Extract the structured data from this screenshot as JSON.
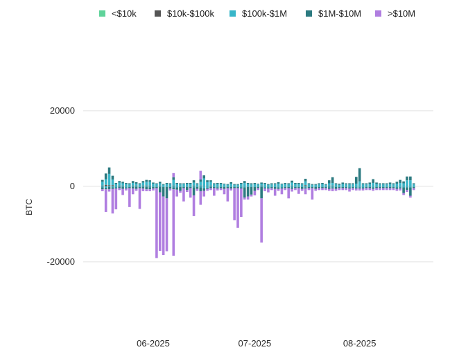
{
  "chart_data": {
    "type": "bar",
    "stacked": true,
    "ylabel": "BTC",
    "ylim": [
      -36000,
      31000
    ],
    "yticks": [
      20000,
      0,
      -20000
    ],
    "ytick_labels": [
      "20000",
      "0",
      "-20000"
    ],
    "xtick_labels": [
      {
        "label": "06-2025",
        "index": 15
      },
      {
        "label": "07-2025",
        "index": 45
      },
      {
        "label": "08-2025",
        "index": 76
      }
    ],
    "grid": "horizontal",
    "legend_position": "top",
    "colors": {
      "lt10k": "#5fd39a",
      "10k_100k": "#555555",
      "100k_1m": "#38b6c9",
      "1m_10m": "#2c7a80",
      "gt10m": "#b07ee0"
    },
    "series": [
      {
        "name": "<$10k",
        "key": "lt10k",
        "pos": [
          0,
          0,
          0,
          0,
          0,
          0,
          0,
          0,
          0,
          0,
          0,
          0,
          0,
          0,
          0,
          0,
          0,
          0,
          0,
          0,
          0,
          0,
          0,
          0,
          0,
          0,
          0,
          0,
          0,
          0,
          0,
          0,
          0,
          0,
          0,
          0,
          0,
          0,
          0,
          0,
          0,
          0,
          0,
          0,
          0,
          0,
          0,
          0,
          0,
          0,
          0,
          0,
          0,
          0,
          0,
          0,
          0,
          0,
          0,
          0,
          0,
          0,
          0,
          0,
          0,
          0,
          0,
          0,
          0,
          0,
          0,
          0,
          0,
          0,
          0,
          0,
          0,
          0,
          0,
          0,
          0,
          0,
          0,
          0,
          0,
          0,
          0,
          0,
          0,
          0,
          0,
          0,
          0
        ],
        "neg": [
          0,
          0,
          0,
          0,
          0,
          0,
          0,
          0,
          0,
          0,
          0,
          0,
          0,
          0,
          0,
          0,
          0,
          0,
          0,
          0,
          0,
          0,
          0,
          0,
          0,
          0,
          0,
          0,
          0,
          0,
          0,
          0,
          0,
          0,
          0,
          0,
          0,
          0,
          0,
          0,
          0,
          0,
          0,
          0,
          0,
          0,
          0,
          0,
          0,
          0,
          0,
          0,
          0,
          0,
          0,
          0,
          0,
          0,
          0,
          0,
          0,
          0,
          0,
          0,
          0,
          0,
          0,
          0,
          0,
          0,
          0,
          0,
          0,
          0,
          0,
          0,
          0,
          0,
          0,
          0,
          0,
          0,
          0,
          0,
          0,
          0,
          0,
          0,
          0,
          0,
          0,
          0,
          0
        ]
      },
      {
        "name": "$10k-$100k",
        "key": "10k_100k",
        "pos": [
          200,
          400,
          300,
          300,
          100,
          200,
          200,
          100,
          100,
          200,
          200,
          100,
          200,
          200,
          200,
          100,
          100,
          200,
          100,
          100,
          100,
          200,
          100,
          100,
          100,
          100,
          100,
          200,
          100,
          200,
          100,
          100,
          200,
          100,
          100,
          100,
          100,
          100,
          100,
          100,
          100,
          100,
          100,
          100,
          100,
          100,
          100,
          200,
          100,
          100,
          100,
          100,
          100,
          100,
          100,
          100,
          200,
          100,
          100,
          100,
          300,
          100,
          100,
          100,
          100,
          100,
          100,
          200,
          200,
          100,
          100,
          100,
          100,
          100,
          100,
          100,
          100,
          100,
          100,
          100,
          100,
          100,
          100,
          100,
          100,
          100,
          100,
          100,
          100,
          100,
          100,
          100,
          100
        ],
        "neg": [
          0,
          0,
          0,
          0,
          0,
          0,
          0,
          0,
          0,
          0,
          0,
          0,
          0,
          0,
          0,
          0,
          0,
          0,
          0,
          0,
          0,
          0,
          0,
          0,
          0,
          0,
          0,
          0,
          0,
          0,
          0,
          0,
          0,
          0,
          0,
          0,
          0,
          0,
          0,
          0,
          0,
          0,
          0,
          0,
          0,
          0,
          0,
          0,
          0,
          0,
          0,
          0,
          0,
          0,
          0,
          0,
          0,
          0,
          0,
          0,
          0,
          0,
          0,
          0,
          0,
          0,
          0,
          0,
          0,
          0,
          0,
          0,
          0,
          0,
          0,
          0,
          0,
          0,
          0,
          0,
          0,
          0,
          0,
          0,
          0,
          0,
          0,
          0,
          0,
          0,
          0,
          0,
          0
        ]
      },
      {
        "name": "$100k-$1M",
        "key": "100k_1m",
        "pos": [
          1000,
          1500,
          3000,
          1500,
          500,
          800,
          600,
          500,
          400,
          700,
          500,
          400,
          800,
          1000,
          1000,
          600,
          500,
          600,
          300,
          500,
          400,
          1500,
          500,
          400,
          500,
          500,
          500,
          800,
          400,
          1000,
          2000,
          1000,
          1000,
          400,
          500,
          500,
          400,
          300,
          600,
          300,
          300,
          500,
          800,
          500,
          400,
          500,
          400,
          500,
          500,
          300,
          400,
          400,
          600,
          400,
          500,
          400,
          800,
          500,
          500,
          400,
          1000,
          400,
          300,
          300,
          400,
          500,
          300,
          600,
          700,
          400,
          300,
          500,
          400,
          400,
          400,
          600,
          1200,
          400,
          400,
          500,
          800,
          500,
          400,
          400,
          400,
          500,
          400,
          600,
          800,
          700,
          1500,
          1500,
          400
        ],
        "neg": [
          300,
          400,
          200,
          300,
          300,
          200,
          200,
          300,
          200,
          200,
          200,
          200,
          200,
          200,
          300,
          200,
          200,
          200,
          200,
          200,
          200,
          300,
          300,
          200,
          200,
          200,
          200,
          300,
          200,
          300,
          500,
          400,
          200,
          200,
          300,
          200,
          200,
          200,
          200,
          200,
          200,
          300,
          300,
          200,
          200,
          200,
          200,
          200,
          300,
          300,
          200,
          200,
          300,
          300,
          200,
          200,
          300,
          200,
          200,
          200,
          300,
          200,
          200,
          200,
          200,
          200,
          200,
          300,
          300,
          200,
          200,
          200,
          200,
          300,
          200,
          300,
          300,
          300,
          200,
          200,
          300,
          200,
          200,
          200,
          200,
          200,
          200,
          300,
          300,
          300,
          300,
          300,
          200
        ]
      },
      {
        "name": "$1M-$10M",
        "key": "1m_10m",
        "pos": [
          500,
          1500,
          1700,
          1000,
          300,
          400,
          400,
          300,
          300,
          500,
          400,
          300,
          400,
          500,
          400,
          300,
          200,
          400,
          200,
          300,
          300,
          700,
          300,
          300,
          200,
          300,
          300,
          600,
          300,
          600,
          800,
          500,
          400,
          300,
          300,
          300,
          200,
          200,
          400,
          200,
          200,
          300,
          500,
          300,
          300,
          300,
          200,
          300,
          300,
          200,
          300,
          300,
          400,
          200,
          300,
          300,
          500,
          300,
          300,
          300,
          700,
          300,
          200,
          200,
          300,
          300,
          200,
          800,
          1500,
          300,
          300,
          400,
          300,
          300,
          300,
          1800,
          3500,
          300,
          300,
          400,
          1000,
          400,
          300,
          300,
          300,
          400,
          300,
          500,
          800,
          500,
          1000,
          1000,
          300
        ],
        "neg": [
          500,
          400,
          600,
          400,
          300,
          300,
          500,
          300,
          300,
          400,
          500,
          300,
          400,
          600,
          500,
          400,
          300,
          1400,
          2500,
          3000,
          400,
          500,
          600,
          1000,
          300,
          800,
          300,
          2100,
          500,
          1000,
          700,
          300,
          300,
          300,
          300,
          300,
          500,
          300,
          400,
          300,
          300,
          300,
          2700,
          2500,
          2000,
          1000,
          300,
          3000,
          300,
          300,
          300,
          500,
          400,
          300,
          300,
          300,
          400,
          300,
          300,
          500,
          300,
          300,
          300,
          500,
          300,
          300,
          300,
          400,
          300,
          500,
          300,
          300,
          300,
          300,
          300,
          300,
          300,
          300,
          300,
          300,
          400,
          300,
          300,
          300,
          300,
          300,
          300,
          400,
          300,
          1500,
          700,
          2200,
          300
        ]
      },
      {
        "name": ">$10M",
        "key": "gt10m",
        "pos": [
          0,
          0,
          0,
          0,
          0,
          0,
          0,
          0,
          0,
          0,
          0,
          0,
          0,
          0,
          0,
          0,
          0,
          0,
          0,
          0,
          0,
          1100,
          0,
          0,
          0,
          0,
          0,
          0,
          0,
          2300,
          0,
          0,
          0,
          0,
          0,
          0,
          0,
          0,
          0,
          0,
          0,
          0,
          0,
          0,
          0,
          0,
          0,
          0,
          0,
          0,
          0,
          0,
          0,
          0,
          0,
          0,
          0,
          0,
          0,
          0,
          0,
          0,
          0,
          0,
          0,
          0,
          0,
          0,
          0,
          0,
          0,
          0,
          0,
          0,
          0,
          0,
          0,
          0,
          0,
          0,
          0,
          0,
          0,
          0,
          0,
          0,
          0,
          0,
          0,
          0,
          0,
          0,
          0
        ],
        "neg": [
          500,
          6000,
          600,
          6500,
          5500,
          500,
          1600,
          500,
          5000,
          1500,
          500,
          5500,
          700,
          500,
          500,
          500,
          18500,
          15500,
          15500,
          14000,
          500,
          17600,
          1800,
          500,
          3500,
          500,
          2500,
          5500,
          500,
          3600,
          1500,
          500,
          500,
          2000,
          500,
          500,
          1400,
          3500,
          500,
          8500,
          10500,
          7500,
          500,
          800,
          500,
          1200,
          500,
          11700,
          700,
          1000,
          500,
          1800,
          500,
          1500,
          500,
          2700,
          700,
          500,
          1500,
          500,
          1500,
          500,
          3000,
          500,
          500,
          500,
          500,
          500,
          700,
          500,
          500,
          500,
          500,
          800,
          500,
          500,
          500,
          500,
          500,
          500,
          500,
          500,
          500,
          500,
          500,
          500,
          500,
          500,
          500,
          500,
          500,
          500,
          500
        ]
      }
    ]
  }
}
